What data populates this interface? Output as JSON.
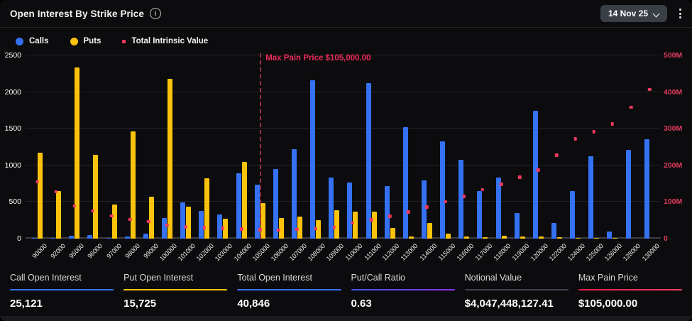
{
  "header": {
    "title": "Open Interest By Strike Price",
    "info_icon": "i",
    "date_selector": {
      "label": "14 Nov 25"
    }
  },
  "legend": {
    "items": [
      {
        "label": "Calls",
        "marker": "circle",
        "color": "#3571f3"
      },
      {
        "label": "Puts",
        "marker": "circle",
        "color": "#fcc30d"
      },
      {
        "label": "Total Intrinsic Value",
        "marker": "square",
        "color": "#f2385f"
      }
    ]
  },
  "chart_data": {
    "type": "bar",
    "subtype": "grouped bars (left axis) + scatter dots (right axis)",
    "categories": [
      "90000",
      "92000",
      "95000",
      "96000",
      "97000",
      "98000",
      "99000",
      "100000",
      "101000",
      "102000",
      "103000",
      "104000",
      "105000",
      "106000",
      "107000",
      "108000",
      "109000",
      "110000",
      "111000",
      "112000",
      "113000",
      "114000",
      "115000",
      "116000",
      "117000",
      "118000",
      "119000",
      "120000",
      "122000",
      "124000",
      "125000",
      "126000",
      "128000",
      "130000"
    ],
    "series": [
      {
        "name": "Calls",
        "axis": "left",
        "color": "#3571f3",
        "values": [
          10,
          10,
          35,
          50,
          10,
          30,
          70,
          285,
          490,
          375,
          325,
          890,
          740,
          950,
          1225,
          2160,
          830,
          770,
          2120,
          715,
          1520,
          790,
          1330,
          1080,
          650,
          830,
          345,
          1745,
          210,
          645,
          1125,
          100,
          1215,
          1355
        ]
      },
      {
        "name": "Puts",
        "axis": "left",
        "color": "#fcc30d",
        "values": [
          1170,
          650,
          2335,
          1140,
          470,
          1465,
          575,
          2180,
          435,
          825,
          270,
          1050,
          485,
          280,
          300,
          255,
          390,
          370,
          370,
          145,
          30,
          210,
          70,
          30,
          15,
          40,
          30,
          25,
          15,
          5,
          5,
          5,
          0,
          0
        ]
      },
      {
        "name": "Total Intrinsic Value",
        "axis": "right",
        "color": "#f2385f",
        "unit": "M",
        "values": [
          155,
          127,
          89,
          75,
          62,
          52,
          46,
          36,
          32,
          30,
          28,
          26,
          24,
          23,
          25,
          27,
          31,
          42,
          51,
          61,
          72,
          86,
          100,
          115,
          133,
          148,
          167,
          187,
          227,
          272,
          291,
          313,
          358,
          407
        ]
      }
    ],
    "left_axis": {
      "min": 0,
      "max": 2500,
      "tick_values": [
        0,
        500,
        1000,
        1500,
        2000,
        2500
      ],
      "tick_labels": [
        "0",
        "500",
        "1000",
        "1500",
        "2000",
        "2500"
      ]
    },
    "right_axis": {
      "min": 0,
      "max": 500,
      "tick_values": [
        0,
        100,
        200,
        300,
        400,
        500
      ],
      "tick_labels": [
        "0",
        "100M",
        "200M",
        "300M",
        "400M",
        "500M"
      ]
    },
    "annotation": {
      "label": "Max Pain Price $105,000.00",
      "strike": "105000"
    },
    "grid": "horizontal only",
    "legend_position": "top-left"
  },
  "stats": {
    "items": [
      {
        "label": "Call Open Interest",
        "value": "25,121",
        "accent": "#3772fa"
      },
      {
        "label": "Put Open Interest",
        "value": "15,725",
        "accent": "#fcc30d"
      },
      {
        "label": "Total Open Interest",
        "value": "40,846",
        "accent": "#3772fa"
      },
      {
        "label": "Put/Call Ratio",
        "value": "0.63",
        "accent": "linear-gradient(90deg,#3f55f0,#9030f0)"
      },
      {
        "label": "Notional Value",
        "value": "$4,047,448,127.41",
        "accent": "#3e4450"
      },
      {
        "label": "Max Pain Price",
        "value": "$105,000.00",
        "accent": "linear-gradient(90deg,#e01e49,#f43f5e)"
      }
    ]
  }
}
